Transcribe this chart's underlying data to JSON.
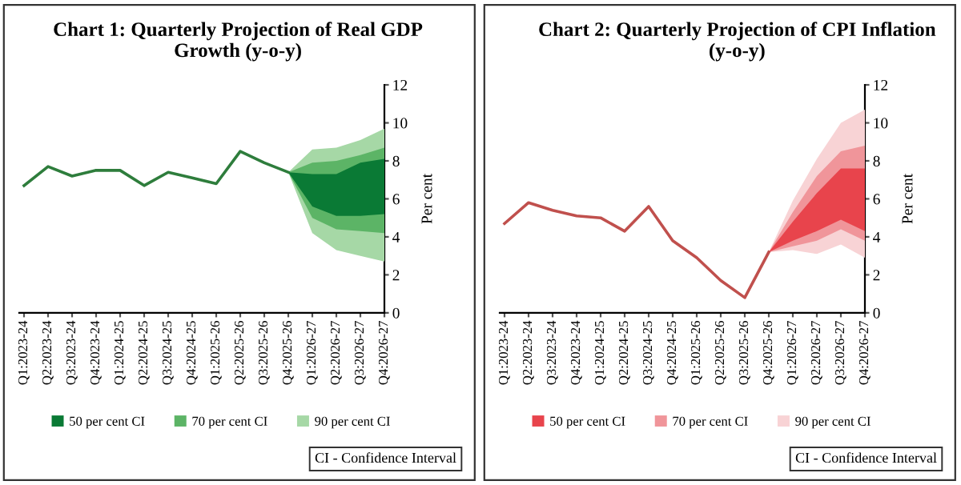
{
  "chart_data": [
    {
      "type": "line",
      "title": "Chart 1: Quarterly Projection of Real GDP Growth (y-o-y)",
      "ylabel": "Per cent",
      "categories": [
        "Q1:2023-24",
        "Q2:2023-24",
        "Q3:2023-24",
        "Q4:2023-24",
        "Q1:2024-25",
        "Q2:2024-25",
        "Q3:2024-25",
        "Q4:2024-25",
        "Q1:2025-26",
        "Q2:2025-26",
        "Q3:2025-26",
        "Q4:2025-26",
        "Q1:2026-27",
        "Q2:2026-27",
        "Q3:2026-27",
        "Q4:2026-27"
      ],
      "series": [
        {
          "color": "#2e7d3c",
          "values": [
            6.7,
            7.7,
            7.2,
            7.5,
            7.5,
            6.7,
            7.4,
            7.1,
            6.8,
            8.5,
            7.9,
            7.4,
            null,
            null,
            null,
            null
          ]
        },
        {
          "type": "area",
          "name": "50 per cent CI",
          "color": "#0a7a35",
          "values": [
            null,
            null,
            null,
            null,
            null,
            null,
            null,
            null,
            null,
            null,
            null,
            null,
            null,
            null,
            null,
            null
          ],
          "upper": [
            null,
            null,
            null,
            null,
            null,
            null,
            null,
            null,
            null,
            null,
            null,
            7.4,
            7.3,
            7.3,
            7.9,
            8.1
          ],
          "lower": [
            null,
            null,
            null,
            null,
            null,
            null,
            null,
            null,
            null,
            null,
            null,
            7.4,
            5.6,
            5.1,
            5.1,
            5.2
          ]
        },
        {
          "type": "area",
          "name": "70 per cent CI",
          "color": "#5cb466",
          "values": [
            null,
            null,
            null,
            null,
            null,
            null,
            null,
            null,
            null,
            null,
            null,
            null,
            null,
            null,
            null,
            null
          ],
          "upper": [
            null,
            null,
            null,
            null,
            null,
            null,
            null,
            null,
            null,
            null,
            null,
            7.4,
            7.9,
            8.0,
            8.3,
            8.7
          ],
          "lower": [
            null,
            null,
            null,
            null,
            null,
            null,
            null,
            null,
            null,
            null,
            null,
            7.4,
            5.0,
            4.4,
            4.3,
            4.2
          ]
        },
        {
          "type": "area",
          "name": "90 per cent CI",
          "color": "#a6d8a6",
          "values": [
            null,
            null,
            null,
            null,
            null,
            null,
            null,
            null,
            null,
            null,
            null,
            null,
            null,
            null,
            null,
            null
          ],
          "upper": [
            null,
            null,
            null,
            null,
            null,
            null,
            null,
            null,
            null,
            null,
            null,
            7.4,
            8.6,
            8.7,
            9.1,
            9.7
          ],
          "lower": [
            null,
            null,
            null,
            null,
            null,
            null,
            null,
            null,
            null,
            null,
            null,
            7.4,
            4.2,
            3.3,
            3.0,
            2.7
          ]
        }
      ],
      "ylim": [
        0,
        12
      ],
      "yticks": [
        0,
        2,
        4,
        6,
        8,
        10,
        12
      ],
      "legend": "bottom",
      "annotations": [
        "CI - Confidence Interval"
      ]
    },
    {
      "type": "line",
      "title": "Chart 2: Quarterly Projection of CPI Inflation (y-o-y)",
      "ylabel": "Per cent",
      "categories": [
        "Q1:2023-24",
        "Q2:2023-24",
        "Q3:2023-24",
        "Q4:2023-24",
        "Q1:2024-25",
        "Q2:2024-25",
        "Q3:2024-25",
        "Q4:2024-25",
        "Q1:2025-26",
        "Q2:2025-26",
        "Q3:2025-26",
        "Q4:2025-26",
        "Q1:2026-27",
        "Q2:2026-27",
        "Q3:2026-27",
        "Q4:2026-27"
      ],
      "series": [
        {
          "color": "#c0504d",
          "values": [
            4.7,
            5.8,
            5.4,
            5.1,
            5.0,
            4.3,
            5.6,
            3.8,
            2.9,
            1.7,
            0.8,
            3.2,
            null,
            null,
            null,
            null
          ]
        },
        {
          "type": "area",
          "name": "50 per cent CI",
          "color": "#e8444c",
          "values": [
            null,
            null,
            null,
            null,
            null,
            null,
            null,
            null,
            null,
            null,
            null,
            null,
            null,
            null,
            null,
            null
          ],
          "upper": [
            null,
            null,
            null,
            null,
            null,
            null,
            null,
            null,
            null,
            null,
            null,
            3.2,
            4.8,
            6.3,
            7.6,
            7.6
          ],
          "lower": [
            null,
            null,
            null,
            null,
            null,
            null,
            null,
            null,
            null,
            null,
            null,
            3.2,
            3.8,
            4.3,
            4.9,
            4.3
          ]
        },
        {
          "type": "area",
          "name": "70 per cent CI",
          "color": "#f0959a",
          "values": [
            null,
            null,
            null,
            null,
            null,
            null,
            null,
            null,
            null,
            null,
            null,
            null,
            null,
            null,
            null,
            null
          ],
          "upper": [
            null,
            null,
            null,
            null,
            null,
            null,
            null,
            null,
            null,
            null,
            null,
            3.2,
            5.3,
            7.2,
            8.5,
            8.8
          ],
          "lower": [
            null,
            null,
            null,
            null,
            null,
            null,
            null,
            null,
            null,
            null,
            null,
            3.2,
            3.5,
            3.8,
            4.4,
            3.8
          ]
        },
        {
          "type": "area",
          "name": "90 per cent CI",
          "color": "#f8d3d5",
          "values": [
            null,
            null,
            null,
            null,
            null,
            null,
            null,
            null,
            null,
            null,
            null,
            null,
            null,
            null,
            null,
            null
          ],
          "upper": [
            null,
            null,
            null,
            null,
            null,
            null,
            null,
            null,
            null,
            null,
            null,
            3.2,
            5.9,
            8.1,
            10.0,
            10.7
          ],
          "lower": [
            null,
            null,
            null,
            null,
            null,
            null,
            null,
            null,
            null,
            null,
            null,
            3.2,
            3.3,
            3.1,
            3.6,
            2.9
          ]
        }
      ],
      "ylim": [
        0,
        12
      ],
      "yticks": [
        0,
        2,
        4,
        6,
        8,
        10,
        12
      ],
      "legend": "bottom",
      "annotations": [
        "CI - Confidence Interval"
      ]
    }
  ]
}
